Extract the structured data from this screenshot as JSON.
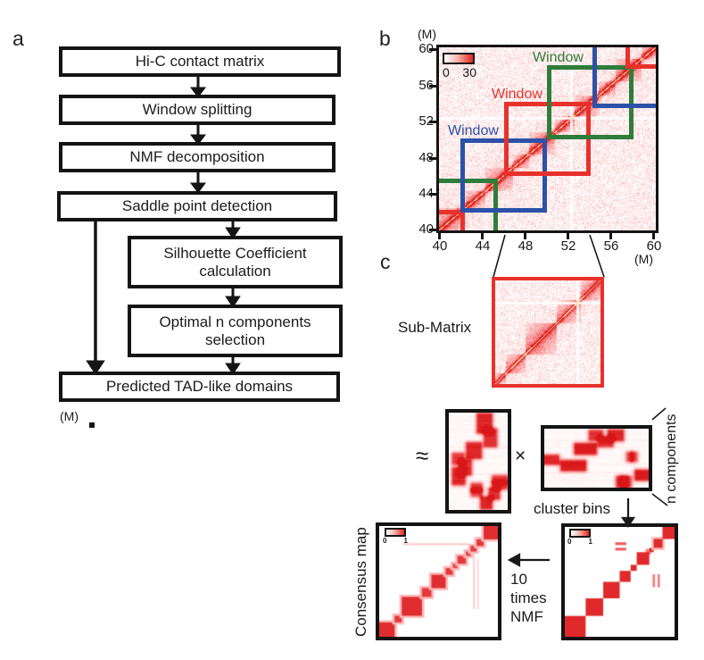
{
  "figure": {
    "panel_a": {
      "label": "a",
      "boxes": [
        {
          "label": "Hi-C contact matrix"
        },
        {
          "label": "Window splitting"
        },
        {
          "label": "NMF decomposition"
        },
        {
          "label": "Saddle point detection"
        },
        {
          "label": "Silhouette Coefficient calculation"
        },
        {
          "label": "Optimal n components selection"
        },
        {
          "label": "Predicted TAD-like domains"
        }
      ],
      "footnote": "(M)"
    },
    "panel_b": {
      "label": "b",
      "unit_top": "(M)",
      "unit_bottom": "(M)",
      "y_ticks": [
        "60",
        "56",
        "52",
        "48",
        "44",
        "40"
      ],
      "x_ticks": [
        "40",
        "44",
        "48",
        "52",
        "56",
        "60"
      ],
      "colorbar": {
        "min": "0",
        "max": "30"
      },
      "windows": [
        {
          "label": "Window",
          "color": "#2e7d3b"
        },
        {
          "label": "Window",
          "color": "#e8312b"
        },
        {
          "label": "Window",
          "color": "#2b51a8"
        }
      ]
    },
    "panel_c": {
      "label": "c",
      "submatrix_label": "Sub-Matrix",
      "approx_symbol": "≈",
      "times_symbol": "×",
      "n_components_label": "n components",
      "cluster_bins_label": "cluster bins",
      "consensus_label": "Consensus map",
      "nmf_lines": {
        "l1": "10",
        "l2": "times",
        "l3": "NMF"
      },
      "mini_colorbar": {
        "min": "0",
        "max": "1"
      }
    }
  },
  "colors": {
    "window_red": "#e8312b",
    "window_green": "#2e7d3b",
    "window_blue": "#2b51a8",
    "frame_black": "#141414",
    "heat_max_red": "#e8231e"
  },
  "heatmaps": {
    "hic": {
      "type": "hic",
      "seed": 7,
      "range": [
        40,
        60
      ],
      "noise": 0.32,
      "cloud": 0.26,
      "cloudScale": 1.6,
      "diag": 0.78,
      "diagSigma": 0.28,
      "cross": 52.25,
      "blocks": [
        [
          40,
          42.4,
          0.55
        ],
        [
          42.4,
          44.3,
          0.5
        ],
        [
          44.3,
          46.8,
          0.55
        ],
        [
          46.8,
          48.3,
          0.5
        ],
        [
          48.3,
          50.7,
          0.55
        ],
        [
          50.7,
          52.5,
          0.5
        ],
        [
          52.5,
          54.7,
          0.55
        ],
        [
          54.7,
          56.3,
          0.5
        ],
        [
          56.3,
          58.7,
          0.55
        ],
        [
          58.7,
          60,
          0.62
        ]
      ]
    },
    "sub": {
      "type": "hic",
      "seed": 21,
      "range": [
        46,
        54
      ],
      "noise": 0.3,
      "cloud": 0.32,
      "cloudScale": 0.85,
      "diag": 0.8,
      "diagSigma": 0.13,
      "cross": 52.25,
      "blocks": [
        [
          46,
          46.8,
          0.5
        ],
        [
          46.8,
          48.3,
          0.5
        ],
        [
          48.3,
          50.7,
          0.55
        ],
        [
          50.7,
          52.5,
          0.5
        ],
        [
          52.5,
          54,
          0.55
        ]
      ]
    },
    "wmat": {
      "type": "mat",
      "seed": 5,
      "streak": 0.14,
      "blobs": [
        [
          0.5,
          0.02,
          0.2,
          0.17,
          0.9
        ],
        [
          0.62,
          0.18,
          0.16,
          0.15,
          0.85
        ],
        [
          0.32,
          0.32,
          0.2,
          0.13,
          0.9
        ],
        [
          0.08,
          0.43,
          0.14,
          0.08,
          0.8
        ],
        [
          0.2,
          0.5,
          0.15,
          0.12,
          0.85
        ],
        [
          0.08,
          0.58,
          0.16,
          0.14,
          0.9
        ],
        [
          0.76,
          0.66,
          0.2,
          0.045,
          0.8
        ],
        [
          0.76,
          0.72,
          0.2,
          0.045,
          0.8
        ],
        [
          0.4,
          0.74,
          0.13,
          0.05,
          0.8
        ],
        [
          0.4,
          0.8,
          0.13,
          0.04,
          0.7
        ],
        [
          0.7,
          0.79,
          0.13,
          0.08,
          0.85
        ],
        [
          0.56,
          0.88,
          0.14,
          0.09,
          0.9
        ]
      ]
    },
    "hmat": {
      "type": "mat",
      "seed": 11,
      "streak": 0.13,
      "blobs": [
        [
          0.44,
          0.05,
          0.1,
          0.11,
          0.85
        ],
        [
          0.62,
          0.04,
          0.12,
          0.13,
          0.9
        ],
        [
          0.53,
          0.16,
          0.11,
          0.11,
          0.85
        ],
        [
          0.3,
          0.27,
          0.18,
          0.13,
          0.95
        ],
        [
          0.0,
          0.47,
          0.12,
          0.1,
          0.9
        ],
        [
          0.17,
          0.56,
          0.21,
          0.12,
          0.95
        ],
        [
          0.8,
          0.42,
          0.025,
          0.1,
          0.7
        ],
        [
          0.845,
          0.42,
          0.025,
          0.1,
          0.7
        ],
        [
          0.88,
          0.72,
          0.12,
          0.12,
          0.95
        ],
        [
          0.7,
          0.83,
          0.035,
          0.13,
          0.8
        ],
        [
          0.745,
          0.83,
          0.03,
          0.13,
          0.8
        ],
        [
          0.79,
          0.83,
          0.025,
          0.13,
          0.7
        ]
      ]
    },
    "consL": {
      "type": "cons",
      "soft": true,
      "blocks": [
        [
          0,
          0.13,
          0.9,
          1
        ],
        [
          0.13,
          0.19,
          0.85,
          0
        ],
        [
          0.19,
          0.36,
          0.9,
          1
        ],
        [
          0.36,
          0.44,
          0.85,
          0
        ],
        [
          0.44,
          0.56,
          0.9,
          0
        ],
        [
          0.56,
          0.62,
          0.85,
          0
        ],
        [
          0.62,
          0.66,
          0.8,
          0
        ],
        [
          0.66,
          0.73,
          0.85,
          0
        ],
        [
          0.73,
          0.77,
          0.8,
          0
        ],
        [
          0.77,
          0.82,
          0.85,
          0
        ],
        [
          0.82,
          0.88,
          0.85,
          1
        ],
        [
          0.88,
          1,
          0.9,
          1
        ]
      ],
      "marks": [
        [
          0.2,
          0.155,
          0.55,
          0.018,
          0.22
        ],
        [
          0.79,
          0.25,
          0.016,
          0.5,
          0.2
        ],
        [
          0.825,
          0.3,
          0.016,
          0.45,
          0.16
        ],
        [
          0.83,
          0.1,
          0.06,
          0.06,
          0.6
        ]
      ]
    },
    "consR": {
      "type": "cons",
      "soft": false,
      "blocks": [
        [
          0,
          0.19,
          0.92,
          0
        ],
        [
          0.19,
          0.35,
          0.92,
          0
        ],
        [
          0.35,
          0.5,
          0.92,
          0
        ],
        [
          0.5,
          0.6,
          0.92,
          0
        ],
        [
          0.6,
          0.655,
          0.92,
          0
        ],
        [
          0.655,
          0.77,
          0.92,
          0
        ],
        [
          0.77,
          0.81,
          0.92,
          0
        ],
        [
          0.81,
          0.89,
          0.92,
          1
        ],
        [
          0.89,
          1,
          0.92,
          0
        ]
      ],
      "marks": [
        [
          0.46,
          0.14,
          0.1,
          0.025,
          0.7
        ],
        [
          0.46,
          0.19,
          0.1,
          0.025,
          0.7
        ],
        [
          0.735,
          0.2,
          0.05,
          0.05,
          0.55
        ],
        [
          0.8,
          0.43,
          0.022,
          0.12,
          0.55
        ],
        [
          0.845,
          0.43,
          0.022,
          0.12,
          0.55
        ]
      ]
    }
  }
}
